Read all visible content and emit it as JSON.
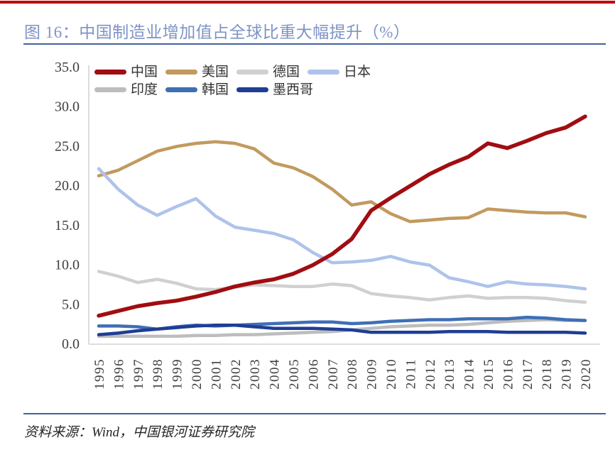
{
  "header": {
    "figure_title": "图 16：中国制造业增加值占全球比重大幅提升（%）"
  },
  "footer": {
    "source": "资料来源：Wind，中国银河证券研究院"
  },
  "colors": {
    "top_accent": "#C00000",
    "divider": "#44619D",
    "title_text": "#7E93C5",
    "axis_line": "#D9D9D9",
    "tick_text": "#3F3F3F"
  },
  "chart_data": {
    "type": "line",
    "title": "中国制造业增加值占全球比重大幅提升（%）",
    "unit": "%",
    "xlabel": "",
    "ylabel": "",
    "ylim": [
      0,
      35
    ],
    "yticks": [
      "0.0",
      "5.0",
      "10.0",
      "15.0",
      "20.0",
      "25.0",
      "30.0",
      "35.0"
    ],
    "grid": false,
    "legend_position": "top-inside-two-rows",
    "x": [
      "1995",
      "1996",
      "1997",
      "1998",
      "1999",
      "2000",
      "2001",
      "2002",
      "2003",
      "2004",
      "2005",
      "2006",
      "2007",
      "2008",
      "2009",
      "2010",
      "2011",
      "2012",
      "2013",
      "2014",
      "2015",
      "2016",
      "2017",
      "2018",
      "2019",
      "2020"
    ],
    "series": [
      {
        "id": "china",
        "name": "中国",
        "color": "#A00D12",
        "values": [
          3.6,
          4.2,
          4.8,
          5.2,
          5.5,
          6.0,
          6.6,
          7.3,
          7.8,
          8.2,
          8.9,
          10.0,
          11.4,
          13.3,
          16.9,
          18.5,
          20.0,
          21.5,
          22.7,
          23.7,
          25.4,
          24.8,
          25.7,
          26.7,
          27.4,
          28.8
        ]
      },
      {
        "id": "usa",
        "name": "美国",
        "color": "#C29A5F",
        "values": [
          21.3,
          22.0,
          23.2,
          24.4,
          25.0,
          25.4,
          25.6,
          25.4,
          24.7,
          22.9,
          22.3,
          21.2,
          19.6,
          17.6,
          18.0,
          16.5,
          15.5,
          15.7,
          15.9,
          16.0,
          17.1,
          16.9,
          16.7,
          16.6,
          16.6,
          16.1
        ]
      },
      {
        "id": "germany",
        "name": "德国",
        "color": "#D0D0D0",
        "values": [
          9.2,
          8.6,
          7.8,
          8.2,
          7.7,
          7.0,
          6.9,
          7.2,
          7.5,
          7.4,
          7.3,
          7.3,
          7.6,
          7.4,
          6.4,
          6.1,
          5.9,
          5.6,
          5.9,
          6.1,
          5.8,
          5.9,
          5.9,
          5.8,
          5.5,
          5.3
        ]
      },
      {
        "id": "japan",
        "name": "日本",
        "color": "#AEC3EB",
        "values": [
          22.2,
          19.6,
          17.6,
          16.3,
          17.4,
          18.4,
          16.2,
          14.8,
          14.4,
          14.0,
          13.2,
          11.6,
          10.3,
          10.4,
          10.6,
          11.1,
          10.4,
          10.0,
          8.4,
          7.9,
          7.3,
          7.9,
          7.6,
          7.5,
          7.3,
          7.0
        ]
      },
      {
        "id": "india",
        "name": "印度",
        "color": "#BDBDBD",
        "values": [
          1.0,
          1.0,
          1.0,
          1.0,
          1.0,
          1.1,
          1.1,
          1.2,
          1.2,
          1.3,
          1.4,
          1.5,
          1.6,
          1.8,
          2.0,
          2.2,
          2.3,
          2.4,
          2.4,
          2.5,
          2.7,
          2.9,
          3.0,
          3.1,
          3.0,
          3.0
        ]
      },
      {
        "id": "korea",
        "name": "韩国",
        "color": "#3F6FB5",
        "values": [
          2.3,
          2.3,
          2.2,
          1.9,
          2.2,
          2.4,
          2.3,
          2.4,
          2.5,
          2.6,
          2.7,
          2.8,
          2.8,
          2.6,
          2.7,
          2.9,
          3.0,
          3.1,
          3.1,
          3.2,
          3.2,
          3.2,
          3.4,
          3.3,
          3.1,
          3.0
        ]
      },
      {
        "id": "mexico",
        "name": "墨西哥",
        "color": "#1F3D94",
        "values": [
          1.2,
          1.4,
          1.7,
          1.9,
          2.1,
          2.3,
          2.4,
          2.4,
          2.2,
          2.0,
          2.0,
          2.0,
          1.9,
          1.8,
          1.5,
          1.5,
          1.5,
          1.5,
          1.6,
          1.6,
          1.6,
          1.5,
          1.5,
          1.5,
          1.5,
          1.4
        ]
      }
    ]
  }
}
